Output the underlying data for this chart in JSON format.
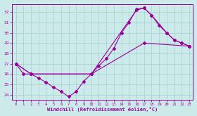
{
  "xlabel": "Windchill (Refroidissement éolien,°C)",
  "xlim": [
    -0.5,
    23.5
  ],
  "ylim": [
    23.5,
    32.8
  ],
  "yticks": [
    24,
    25,
    26,
    27,
    28,
    29,
    30,
    31,
    32
  ],
  "xticks": [
    0,
    1,
    2,
    3,
    4,
    5,
    6,
    7,
    8,
    9,
    10,
    11,
    12,
    13,
    14,
    15,
    16,
    17,
    18,
    19,
    20,
    21,
    22,
    23
  ],
  "bg_color": "#cceaea",
  "grid_color": "#aad4d4",
  "line_color": "#990099",
  "line1_x": [
    0,
    1,
    2,
    3,
    4,
    5,
    6,
    7,
    8,
    9,
    10,
    11,
    12,
    13,
    14,
    15,
    16,
    17,
    18,
    19,
    20,
    21,
    22,
    23
  ],
  "line1_y": [
    27.0,
    26.0,
    26.0,
    25.6,
    25.2,
    24.7,
    24.3,
    23.8,
    24.3,
    25.3,
    26.0,
    26.8,
    27.5,
    28.5,
    30.0,
    31.0,
    32.3,
    32.4,
    31.7,
    30.7,
    30.0,
    29.3,
    29.0,
    28.7
  ],
  "line2_x": [
    0,
    2,
    10,
    16,
    17,
    18,
    20,
    21,
    22,
    23
  ],
  "line2_y": [
    27.0,
    26.0,
    26.0,
    32.2,
    32.4,
    31.7,
    30.0,
    29.3,
    29.0,
    28.7
  ],
  "line3_x": [
    0,
    2,
    10,
    17,
    23
  ],
  "line3_y": [
    27.0,
    26.0,
    26.0,
    29.0,
    28.7
  ]
}
